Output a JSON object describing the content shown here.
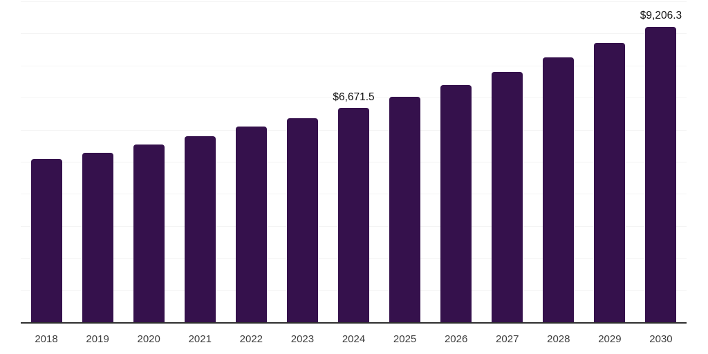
{
  "chart_data": {
    "type": "bar",
    "title": "",
    "xlabel": "",
    "ylabel": "",
    "categories": [
      "2018",
      "2019",
      "2020",
      "2021",
      "2022",
      "2023",
      "2024",
      "2025",
      "2026",
      "2027",
      "2028",
      "2029",
      "2030"
    ],
    "values": [
      5084.6,
      5277.8,
      5535.1,
      5793.4,
      6094.2,
      6352.5,
      6671.5,
      7018.3,
      7384.7,
      7792.6,
      8265.4,
      8717.9,
      9206.3
    ],
    "data_labels": {
      "2024": "$6,671.5",
      "2030": "$9,206.3"
    },
    "value_prefix": "$",
    "ylim": [
      0,
      10000
    ],
    "gridline_interval": 1000,
    "grid": true,
    "legend": "none",
    "colors": {
      "bar": "#35114C",
      "axis_line": "#2f2f2f",
      "gridline": "#f4f4f4",
      "tick_label": "#3d3d3d",
      "data_label": "#111111",
      "background": "#ffffff"
    }
  }
}
